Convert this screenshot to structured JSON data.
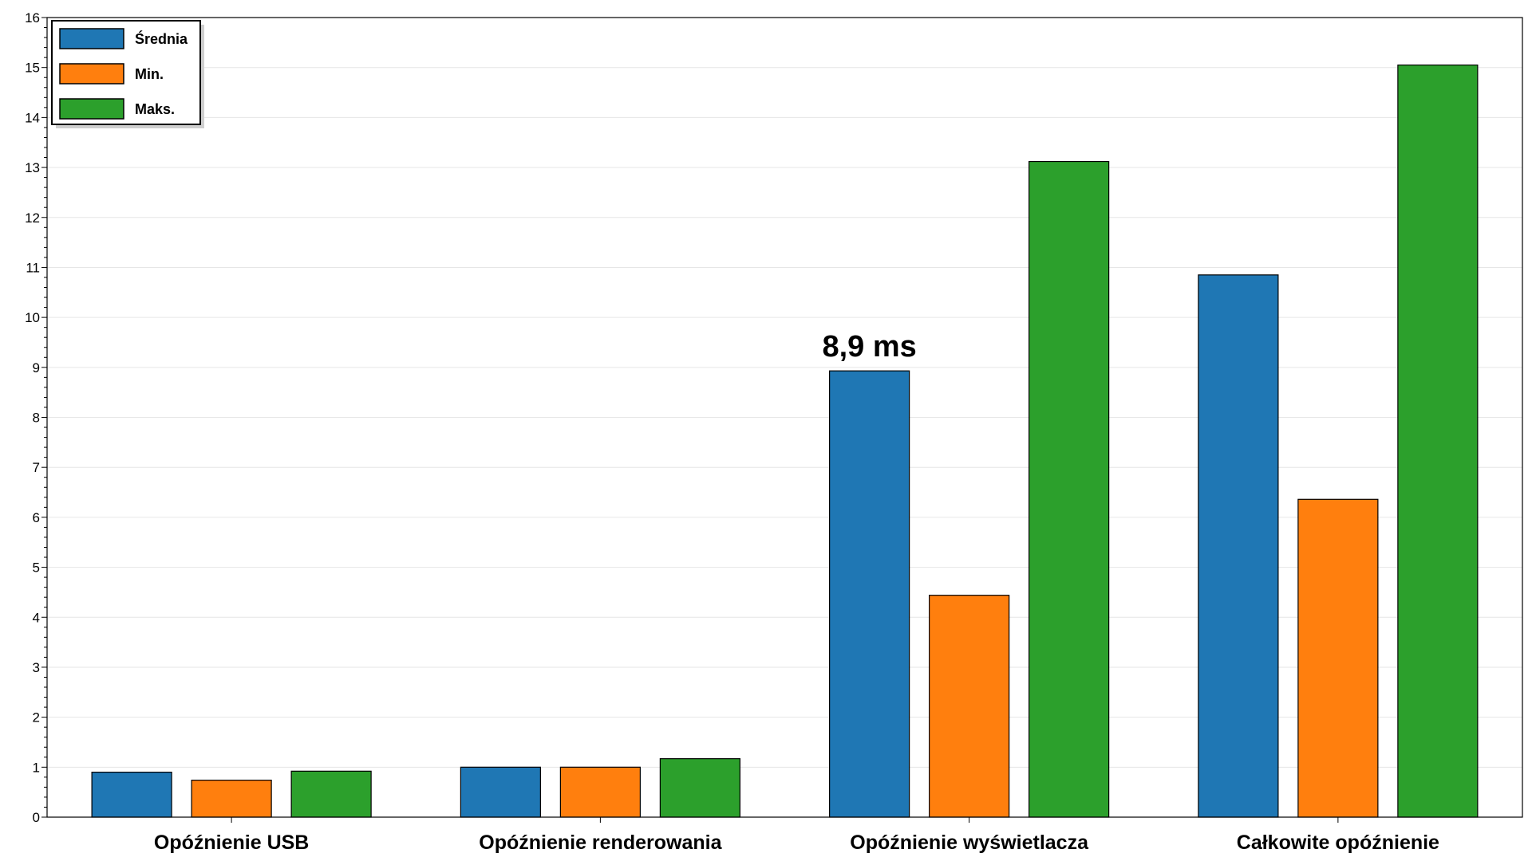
{
  "chart_data": {
    "type": "bar",
    "categories": [
      "Opóźnienie USB",
      "Opóźnienie renderowania",
      "Opóźnienie wyświetlacza",
      "Całkowite opóźnienie"
    ],
    "series": [
      {
        "name": "Średnia",
        "values": [
          0.9,
          1.0,
          8.93,
          10.85
        ],
        "color": "#1f77b4"
      },
      {
        "name": "Min.",
        "values": [
          0.74,
          1.0,
          4.44,
          6.36
        ],
        "color": "#ff7f0e"
      },
      {
        "name": "Maks.",
        "values": [
          0.92,
          1.17,
          13.12,
          15.05
        ],
        "color": "#2ca02c"
      }
    ],
    "ylim": [
      0,
      16
    ],
    "yticks": [
      "0",
      "1",
      "2",
      "3",
      "4",
      "5",
      "6",
      "7",
      "8",
      "9",
      "10",
      "11",
      "12",
      "13",
      "14",
      "15",
      "16"
    ],
    "grid": true,
    "legend_position": "top-left",
    "annotation": {
      "text": "8,9 ms",
      "category_index": 2,
      "series_index": 0
    }
  }
}
